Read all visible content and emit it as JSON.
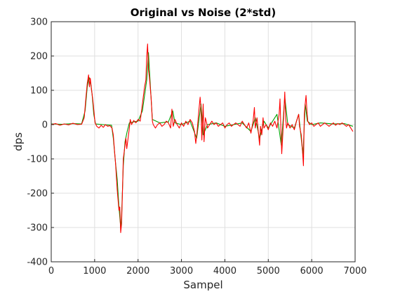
{
  "chart_data": {
    "type": "line",
    "title": "Original vs Noise (2*std)",
    "xlabel": "Sampel",
    "ylabel": "dps",
    "xlim": [
      0,
      7000
    ],
    "ylim": [
      -400,
      300
    ],
    "xticks": [
      0,
      1000,
      2000,
      3000,
      4000,
      5000,
      6000,
      7000
    ],
    "yticks": [
      -400,
      -300,
      -200,
      -100,
      0,
      100,
      200,
      300
    ],
    "grid": true,
    "legend": "none",
    "series": [
      {
        "color": "#00a000",
        "points": [
          [
            0,
            2
          ],
          [
            250,
            1
          ],
          [
            500,
            3
          ],
          [
            700,
            2
          ],
          [
            780,
            40
          ],
          [
            830,
            110
          ],
          [
            870,
            138
          ],
          [
            900,
            128
          ],
          [
            940,
            90
          ],
          [
            980,
            30
          ],
          [
            1020,
            2
          ],
          [
            1200,
            0
          ],
          [
            1390,
            -2
          ],
          [
            1430,
            -40
          ],
          [
            1480,
            -110
          ],
          [
            1520,
            -160
          ],
          [
            1560,
            -240
          ],
          [
            1600,
            -300
          ],
          [
            1620,
            -270
          ],
          [
            1660,
            -120
          ],
          [
            1700,
            -50
          ],
          [
            1750,
            -20
          ],
          [
            1800,
            5
          ],
          [
            1900,
            8
          ],
          [
            2000,
            10
          ],
          [
            2100,
            40
          ],
          [
            2200,
            130
          ],
          [
            2240,
            210
          ],
          [
            2280,
            120
          ],
          [
            2330,
            15
          ],
          [
            2500,
            5
          ],
          [
            2700,
            8
          ],
          [
            2800,
            40
          ],
          [
            2850,
            5
          ],
          [
            3000,
            0
          ],
          [
            3200,
            10
          ],
          [
            3350,
            -40
          ],
          [
            3450,
            60
          ],
          [
            3500,
            -30
          ],
          [
            3600,
            0
          ],
          [
            3800,
            5
          ],
          [
            4000,
            -5
          ],
          [
            4200,
            0
          ],
          [
            4400,
            5
          ],
          [
            4600,
            -20
          ],
          [
            4700,
            20
          ],
          [
            4800,
            -40
          ],
          [
            4900,
            10
          ],
          [
            5000,
            -10
          ],
          [
            5200,
            30
          ],
          [
            5300,
            -60
          ],
          [
            5380,
            80
          ],
          [
            5450,
            0
          ],
          [
            5600,
            -10
          ],
          [
            5700,
            30
          ],
          [
            5800,
            -90
          ],
          [
            5850,
            60
          ],
          [
            5900,
            10
          ],
          [
            6000,
            0
          ],
          [
            6200,
            5
          ],
          [
            6500,
            2
          ],
          [
            6750,
            3
          ],
          [
            6950,
            -5
          ]
        ]
      },
      {
        "color": "#ff0000",
        "points": [
          [
            0,
            0
          ],
          [
            100,
            3
          ],
          [
            200,
            -2
          ],
          [
            300,
            2
          ],
          [
            400,
            -1
          ],
          [
            500,
            4
          ],
          [
            600,
            0
          ],
          [
            700,
            1
          ],
          [
            760,
            20
          ],
          [
            800,
            80
          ],
          [
            830,
            120
          ],
          [
            860,
            145
          ],
          [
            880,
            110
          ],
          [
            900,
            135
          ],
          [
            930,
            100
          ],
          [
            960,
            70
          ],
          [
            990,
            30
          ],
          [
            1010,
            5
          ],
          [
            1050,
            -5
          ],
          [
            1100,
            -10
          ],
          [
            1150,
            -2
          ],
          [
            1200,
            -8
          ],
          [
            1250,
            0
          ],
          [
            1300,
            -5
          ],
          [
            1350,
            -3
          ],
          [
            1400,
            -10
          ],
          [
            1430,
            -30
          ],
          [
            1460,
            -80
          ],
          [
            1480,
            -110
          ],
          [
            1500,
            -150
          ],
          [
            1520,
            -190
          ],
          [
            1540,
            -220
          ],
          [
            1560,
            -250
          ],
          [
            1580,
            -240
          ],
          [
            1600,
            -315
          ],
          [
            1620,
            -290
          ],
          [
            1640,
            -200
          ],
          [
            1660,
            -100
          ],
          [
            1680,
            -80
          ],
          [
            1700,
            -60
          ],
          [
            1720,
            -40
          ],
          [
            1740,
            -70
          ],
          [
            1760,
            -50
          ],
          [
            1780,
            -30
          ],
          [
            1800,
            -10
          ],
          [
            1820,
            15
          ],
          [
            1850,
            0
          ],
          [
            1900,
            12
          ],
          [
            1950,
            5
          ],
          [
            2000,
            15
          ],
          [
            2050,
            10
          ],
          [
            2100,
            60
          ],
          [
            2150,
            110
          ],
          [
            2180,
            130
          ],
          [
            2200,
            200
          ],
          [
            2220,
            235
          ],
          [
            2240,
            160
          ],
          [
            2260,
            140
          ],
          [
            2280,
            110
          ],
          [
            2300,
            80
          ],
          [
            2330,
            10
          ],
          [
            2350,
            0
          ],
          [
            2400,
            -10
          ],
          [
            2450,
            0
          ],
          [
            2500,
            5
          ],
          [
            2550,
            -5
          ],
          [
            2600,
            0
          ],
          [
            2650,
            10
          ],
          [
            2700,
            5
          ],
          [
            2750,
            -10
          ],
          [
            2780,
            45
          ],
          [
            2810,
            -5
          ],
          [
            2850,
            15
          ],
          [
            2900,
            0
          ],
          [
            2950,
            -10
          ],
          [
            3000,
            5
          ],
          [
            3050,
            -5
          ],
          [
            3100,
            10
          ],
          [
            3150,
            0
          ],
          [
            3200,
            15
          ],
          [
            3250,
            5
          ],
          [
            3300,
            -20
          ],
          [
            3330,
            -55
          ],
          [
            3360,
            -20
          ],
          [
            3400,
            40
          ],
          [
            3430,
            80
          ],
          [
            3450,
            45
          ],
          [
            3470,
            -45
          ],
          [
            3500,
            60
          ],
          [
            3520,
            -50
          ],
          [
            3550,
            20
          ],
          [
            3580,
            5
          ],
          [
            3600,
            -10
          ],
          [
            3650,
            0
          ],
          [
            3700,
            10
          ],
          [
            3750,
            0
          ],
          [
            3800,
            5
          ],
          [
            3850,
            -5
          ],
          [
            3900,
            0
          ],
          [
            3950,
            5
          ],
          [
            4000,
            -10
          ],
          [
            4050,
            0
          ],
          [
            4100,
            5
          ],
          [
            4150,
            -5
          ],
          [
            4200,
            0
          ],
          [
            4250,
            5
          ],
          [
            4300,
            0
          ],
          [
            4350,
            -5
          ],
          [
            4400,
            10
          ],
          [
            4450,
            0
          ],
          [
            4500,
            -10
          ],
          [
            4550,
            5
          ],
          [
            4600,
            -25
          ],
          [
            4650,
            10
          ],
          [
            4680,
            50
          ],
          [
            4700,
            -10
          ],
          [
            4740,
            20
          ],
          [
            4770,
            -20
          ],
          [
            4800,
            -60
          ],
          [
            4820,
            -5
          ],
          [
            4850,
            -30
          ],
          [
            4880,
            20
          ],
          [
            4900,
            -10
          ],
          [
            4950,
            0
          ],
          [
            5000,
            -15
          ],
          [
            5050,
            5
          ],
          [
            5100,
            -5
          ],
          [
            5150,
            10
          ],
          [
            5200,
            -10
          ],
          [
            5250,
            30
          ],
          [
            5270,
            75
          ],
          [
            5290,
            -10
          ],
          [
            5310,
            -85
          ],
          [
            5330,
            -40
          ],
          [
            5360,
            40
          ],
          [
            5380,
            95
          ],
          [
            5400,
            20
          ],
          [
            5420,
            -10
          ],
          [
            5450,
            5
          ],
          [
            5500,
            -10
          ],
          [
            5550,
            0
          ],
          [
            5600,
            -15
          ],
          [
            5650,
            10
          ],
          [
            5700,
            30
          ],
          [
            5720,
            -5
          ],
          [
            5760,
            -30
          ],
          [
            5790,
            -80
          ],
          [
            5810,
            -120
          ],
          [
            5830,
            30
          ],
          [
            5850,
            60
          ],
          [
            5870,
            85
          ],
          [
            5890,
            40
          ],
          [
            5910,
            10
          ],
          [
            5950,
            0
          ],
          [
            6000,
            5
          ],
          [
            6050,
            -5
          ],
          [
            6100,
            0
          ],
          [
            6150,
            5
          ],
          [
            6200,
            -5
          ],
          [
            6250,
            0
          ],
          [
            6300,
            5
          ],
          [
            6350,
            0
          ],
          [
            6400,
            -5
          ],
          [
            6450,
            0
          ],
          [
            6500,
            5
          ],
          [
            6550,
            -2
          ],
          [
            6600,
            3
          ],
          [
            6650,
            0
          ],
          [
            6700,
            5
          ],
          [
            6750,
            0
          ],
          [
            6800,
            -5
          ],
          [
            6850,
            0
          ],
          [
            6900,
            -10
          ],
          [
            6950,
            -20
          ]
        ]
      }
    ]
  }
}
